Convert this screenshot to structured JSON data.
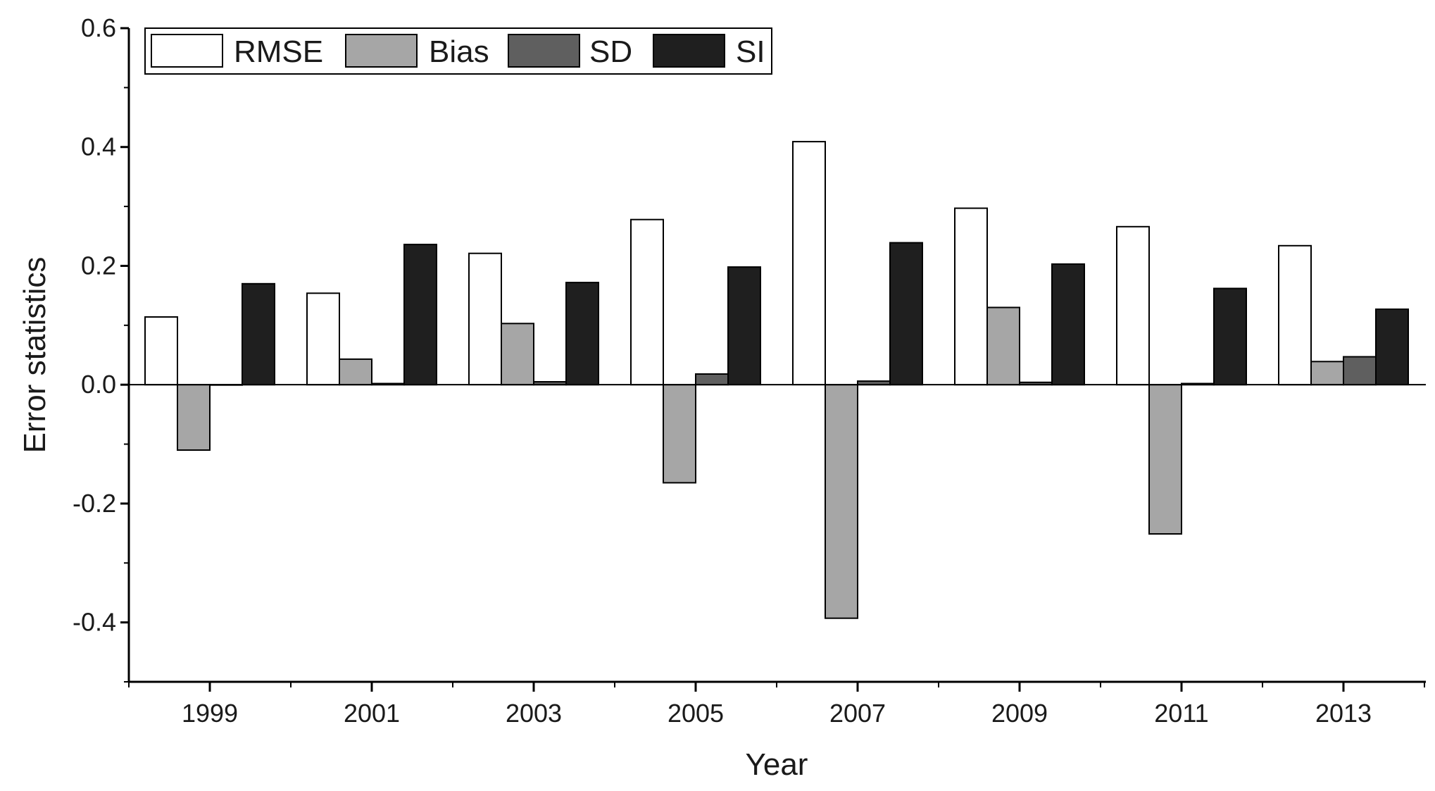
{
  "chart_data": {
    "type": "bar",
    "title": "",
    "xlabel": "Year",
    "ylabel": "Error statistics",
    "categories": [
      "1999",
      "2001",
      "2003",
      "2005",
      "2007",
      "2009",
      "2011",
      "2013"
    ],
    "series": [
      {
        "name": "RMSE",
        "color": "#ffffff",
        "values": [
          0.114,
          0.154,
          0.221,
          0.278,
          0.409,
          0.297,
          0.266,
          0.234
        ]
      },
      {
        "name": "Bias",
        "color": "#a6a6a6",
        "values": [
          -0.11,
          0.043,
          0.103,
          -0.165,
          -0.393,
          0.13,
          -0.251,
          0.039
        ]
      },
      {
        "name": "SD",
        "color": "#5f5f5f",
        "values": [
          0.0,
          0.002,
          0.005,
          0.018,
          0.006,
          0.004,
          0.002,
          0.047
        ]
      },
      {
        "name": "SI",
        "color": "#1f1f1f",
        "values": [
          0.17,
          0.236,
          0.172,
          0.198,
          0.239,
          0.203,
          0.162,
          0.127
        ]
      }
    ],
    "ylim": [
      -0.5,
      0.6
    ],
    "yticks": [
      "-0.4",
      "-0.2",
      "0.0",
      "0.2",
      "0.4",
      "0.6"
    ],
    "ytick_values": [
      -0.4,
      -0.2,
      0.0,
      0.2,
      0.4,
      0.6
    ],
    "grid": false,
    "legend_position": "top-left"
  }
}
